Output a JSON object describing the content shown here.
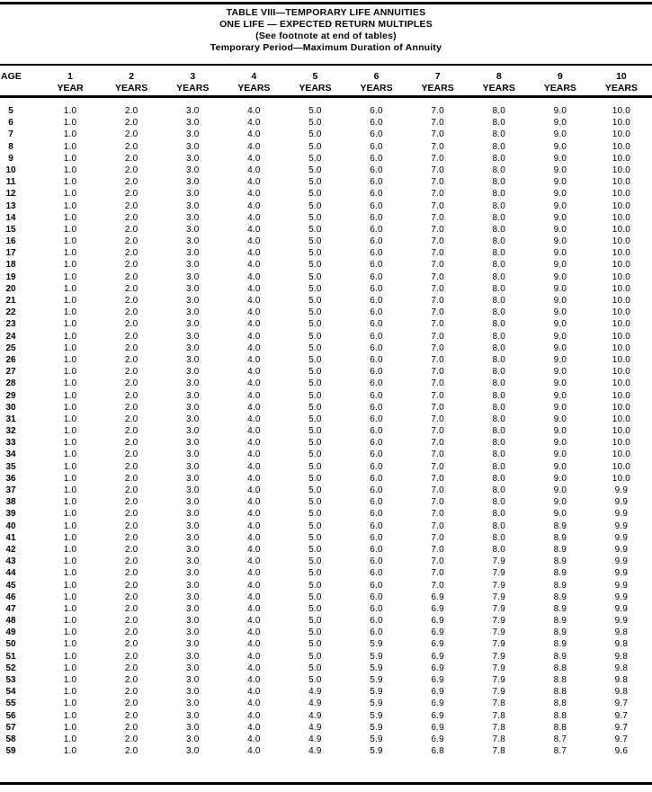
{
  "colors": {
    "background": "#ffffff",
    "text": "#000000",
    "rule": "#000000"
  },
  "title_lines": [
    "TABLE VIII—TEMPORARY LIFE ANNUITIES",
    "ONE LIFE — EXPECTED RETURN MULTIPLES",
    "(See footnote at end of tables)",
    "Temporary Period—Maximum Duration of Annuity"
  ],
  "table": {
    "age_header": "AGE",
    "year_columns": [
      {
        "number": "1",
        "unit": "YEAR"
      },
      {
        "number": "2",
        "unit": "YEARS"
      },
      {
        "number": "3",
        "unit": "YEARS"
      },
      {
        "number": "4",
        "unit": "YEARS"
      },
      {
        "number": "5",
        "unit": "YEARS"
      },
      {
        "number": "6",
        "unit": "YEARS"
      },
      {
        "number": "7",
        "unit": "YEARS"
      },
      {
        "number": "8",
        "unit": "YEARS"
      },
      {
        "number": "9",
        "unit": "YEARS"
      },
      {
        "number": "10",
        "unit": "YEARS"
      }
    ],
    "rows": [
      {
        "age": "5",
        "values": [
          "1.0",
          "2.0",
          "3.0",
          "4.0",
          "5.0",
          "6.0",
          "7.0",
          "8.0",
          "9.0",
          "10.0"
        ]
      },
      {
        "age": "6",
        "values": [
          "1.0",
          "2.0",
          "3.0",
          "4.0",
          "5.0",
          "6.0",
          "7.0",
          "8.0",
          "9.0",
          "10.0"
        ]
      },
      {
        "age": "7",
        "values": [
          "1.0",
          "2.0",
          "3.0",
          "4.0",
          "5.0",
          "6.0",
          "7.0",
          "8.0",
          "9.0",
          "10.0"
        ]
      },
      {
        "age": "8",
        "values": [
          "1.0",
          "2.0",
          "3.0",
          "4.0",
          "5.0",
          "6.0",
          "7.0",
          "8.0",
          "9.0",
          "10.0"
        ]
      },
      {
        "age": "9",
        "values": [
          "1.0",
          "2.0",
          "3.0",
          "4.0",
          "5.0",
          "6.0",
          "7.0",
          "8.0",
          "9.0",
          "10.0"
        ]
      },
      {
        "age": "10",
        "values": [
          "1.0",
          "2.0",
          "3.0",
          "4.0",
          "5.0",
          "6.0",
          "7.0",
          "8.0",
          "9.0",
          "10.0"
        ]
      },
      {
        "age": "11",
        "values": [
          "1.0",
          "2.0",
          "3.0",
          "4.0",
          "5.0",
          "6.0",
          "7.0",
          "8.0",
          "9.0",
          "10.0"
        ]
      },
      {
        "age": "12",
        "values": [
          "1.0",
          "2.0",
          "3.0",
          "4.0",
          "5.0",
          "6.0",
          "7.0",
          "8.0",
          "9.0",
          "10.0"
        ]
      },
      {
        "age": "13",
        "values": [
          "1.0",
          "2.0",
          "3.0",
          "4.0",
          "5.0",
          "6.0",
          "7.0",
          "8.0",
          "9.0",
          "10.0"
        ]
      },
      {
        "age": "14",
        "values": [
          "1.0",
          "2.0",
          "3.0",
          "4.0",
          "5.0",
          "6.0",
          "7.0",
          "8.0",
          "9.0",
          "10.0"
        ]
      },
      {
        "age": "15",
        "values": [
          "1.0",
          "2.0",
          "3.0",
          "4.0",
          "5.0",
          "6.0",
          "7.0",
          "8.0",
          "9.0",
          "10.0"
        ]
      },
      {
        "age": "16",
        "values": [
          "1.0",
          "2.0",
          "3.0",
          "4.0",
          "5.0",
          "6.0",
          "7.0",
          "8.0",
          "9.0",
          "10.0"
        ]
      },
      {
        "age": "17",
        "values": [
          "1.0",
          "2.0",
          "3.0",
          "4.0",
          "5.0",
          "6.0",
          "7.0",
          "8.0",
          "9.0",
          "10.0"
        ]
      },
      {
        "age": "18",
        "values": [
          "1.0",
          "2.0",
          "3.0",
          "4.0",
          "5.0",
          "6.0",
          "7.0",
          "8.0",
          "9.0",
          "10.0"
        ]
      },
      {
        "age": "19",
        "values": [
          "1.0",
          "2.0",
          "3.0",
          "4.0",
          "5.0",
          "6.0",
          "7.0",
          "8.0",
          "9.0",
          "10.0"
        ]
      },
      {
        "age": "20",
        "values": [
          "1.0",
          "2.0",
          "3.0",
          "4.0",
          "5.0",
          "6.0",
          "7.0",
          "8.0",
          "9.0",
          "10.0"
        ]
      },
      {
        "age": "21",
        "values": [
          "1.0",
          "2.0",
          "3.0",
          "4.0",
          "5.0",
          "6.0",
          "7.0",
          "8.0",
          "9.0",
          "10.0"
        ]
      },
      {
        "age": "22",
        "values": [
          "1.0",
          "2.0",
          "3.0",
          "4.0",
          "5.0",
          "6.0",
          "7.0",
          "8.0",
          "9.0",
          "10.0"
        ]
      },
      {
        "age": "23",
        "values": [
          "1.0",
          "2.0",
          "3.0",
          "4.0",
          "5.0",
          "6.0",
          "7.0",
          "8.0",
          "9.0",
          "10.0"
        ]
      },
      {
        "age": "24",
        "values": [
          "1.0",
          "2.0",
          "3.0",
          "4.0",
          "5.0",
          "6.0",
          "7.0",
          "8.0",
          "9.0",
          "10.0"
        ]
      },
      {
        "age": "25",
        "values": [
          "1.0",
          "2.0",
          "3.0",
          "4.0",
          "5.0",
          "6.0",
          "7.0",
          "8.0",
          "9.0",
          "10.0"
        ]
      },
      {
        "age": "26",
        "values": [
          "1.0",
          "2.0",
          "3.0",
          "4.0",
          "5.0",
          "6.0",
          "7.0",
          "8.0",
          "9.0",
          "10.0"
        ]
      },
      {
        "age": "27",
        "values": [
          "1.0",
          "2.0",
          "3.0",
          "4.0",
          "5.0",
          "6.0",
          "7.0",
          "8.0",
          "9.0",
          "10.0"
        ]
      },
      {
        "age": "28",
        "values": [
          "1.0",
          "2.0",
          "3.0",
          "4.0",
          "5.0",
          "6.0",
          "7.0",
          "8.0",
          "9.0",
          "10.0"
        ]
      },
      {
        "age": "29",
        "values": [
          "1.0",
          "2.0",
          "3.0",
          "4.0",
          "5.0",
          "6.0",
          "7.0",
          "8.0",
          "9.0",
          "10.0"
        ]
      },
      {
        "age": "30",
        "values": [
          "1.0",
          "2.0",
          "3.0",
          "4.0",
          "5.0",
          "6.0",
          "7.0",
          "8.0",
          "9.0",
          "10.0"
        ]
      },
      {
        "age": "31",
        "values": [
          "1.0",
          "2.0",
          "3.0",
          "4.0",
          "5.0",
          "6.0",
          "7.0",
          "8.0",
          "9.0",
          "10.0"
        ]
      },
      {
        "age": "32",
        "values": [
          "1.0",
          "2.0",
          "3.0",
          "4.0",
          "5.0",
          "6.0",
          "7.0",
          "8.0",
          "9.0",
          "10.0"
        ]
      },
      {
        "age": "33",
        "values": [
          "1.0",
          "2.0",
          "3.0",
          "4.0",
          "5.0",
          "6.0",
          "7.0",
          "8.0",
          "9.0",
          "10.0"
        ]
      },
      {
        "age": "34",
        "values": [
          "1.0",
          "2.0",
          "3.0",
          "4.0",
          "5.0",
          "6.0",
          "7.0",
          "8.0",
          "9.0",
          "10.0"
        ]
      },
      {
        "age": "35",
        "values": [
          "1.0",
          "2.0",
          "3.0",
          "4.0",
          "5.0",
          "6.0",
          "7.0",
          "8.0",
          "9.0",
          "10.0"
        ]
      },
      {
        "age": "36",
        "values": [
          "1.0",
          "2.0",
          "3.0",
          "4.0",
          "5.0",
          "6.0",
          "7.0",
          "8.0",
          "9.0",
          "10.0"
        ]
      },
      {
        "age": "37",
        "values": [
          "1.0",
          "2.0",
          "3.0",
          "4.0",
          "5.0",
          "6.0",
          "7.0",
          "8.0",
          "9.0",
          "9.9"
        ]
      },
      {
        "age": "38",
        "values": [
          "1.0",
          "2.0",
          "3.0",
          "4.0",
          "5.0",
          "6.0",
          "7.0",
          "8.0",
          "9.0",
          "9.9"
        ]
      },
      {
        "age": "39",
        "values": [
          "1.0",
          "2.0",
          "3.0",
          "4.0",
          "5.0",
          "6.0",
          "7.0",
          "8.0",
          "9.0",
          "9.9"
        ]
      },
      {
        "age": "40",
        "values": [
          "1.0",
          "2.0",
          "3.0",
          "4.0",
          "5.0",
          "6.0",
          "7.0",
          "8.0",
          "8.9",
          "9.9"
        ]
      },
      {
        "age": "41",
        "values": [
          "1.0",
          "2.0",
          "3.0",
          "4.0",
          "5.0",
          "6.0",
          "7.0",
          "8.0",
          "8.9",
          "9.9"
        ]
      },
      {
        "age": "42",
        "values": [
          "1.0",
          "2.0",
          "3.0",
          "4.0",
          "5.0",
          "6.0",
          "7.0",
          "8.0",
          "8.9",
          "9.9"
        ]
      },
      {
        "age": "43",
        "values": [
          "1.0",
          "2.0",
          "3.0",
          "4.0",
          "5.0",
          "6.0",
          "7.0",
          "7.9",
          "8.9",
          "9.9"
        ]
      },
      {
        "age": "44",
        "values": [
          "1.0",
          "2.0",
          "3.0",
          "4.0",
          "5.0",
          "6.0",
          "7.0",
          "7.9",
          "8.9",
          "9.9"
        ]
      },
      {
        "age": "45",
        "values": [
          "1.0",
          "2.0",
          "3.0",
          "4.0",
          "5.0",
          "6.0",
          "7.0",
          "7.9",
          "8.9",
          "9.9"
        ]
      },
      {
        "age": "46",
        "values": [
          "1.0",
          "2.0",
          "3.0",
          "4.0",
          "5.0",
          "6.0",
          "6.9",
          "7.9",
          "8.9",
          "9.9"
        ]
      },
      {
        "age": "47",
        "values": [
          "1.0",
          "2.0",
          "3.0",
          "4.0",
          "5.0",
          "6.0",
          "6.9",
          "7.9",
          "8.9",
          "9.9"
        ]
      },
      {
        "age": "48",
        "values": [
          "1.0",
          "2.0",
          "3.0",
          "4.0",
          "5.0",
          "6.0",
          "6.9",
          "7.9",
          "8.9",
          "9.9"
        ]
      },
      {
        "age": "49",
        "values": [
          "1.0",
          "2.0",
          "3.0",
          "4.0",
          "5.0",
          "6.0",
          "6.9",
          "7.9",
          "8.9",
          "9.8"
        ]
      },
      {
        "age": "50",
        "values": [
          "1.0",
          "2.0",
          "3.0",
          "4.0",
          "5.0",
          "5.9",
          "6.9",
          "7.9",
          "8.9",
          "9.8"
        ]
      },
      {
        "age": "51",
        "values": [
          "1.0",
          "2.0",
          "3.0",
          "4.0",
          "5.0",
          "5.9",
          "6.9",
          "7.9",
          "8.9",
          "9.8"
        ]
      },
      {
        "age": "52",
        "values": [
          "1.0",
          "2.0",
          "3.0",
          "4.0",
          "5.0",
          "5.9",
          "6.9",
          "7.9",
          "8.8",
          "9.8"
        ]
      },
      {
        "age": "53",
        "values": [
          "1.0",
          "2.0",
          "3.0",
          "4.0",
          "5.0",
          "5.9",
          "6.9",
          "7.9",
          "8.8",
          "9.8"
        ]
      },
      {
        "age": "54",
        "values": [
          "1.0",
          "2.0",
          "3.0",
          "4.0",
          "4.9",
          "5.9",
          "6.9",
          "7.9",
          "8.8",
          "9.8"
        ]
      },
      {
        "age": "55",
        "values": [
          "1.0",
          "2.0",
          "3.0",
          "4.0",
          "4.9",
          "5.9",
          "6.9",
          "7.8",
          "8.8",
          "9.7"
        ]
      },
      {
        "age": "56",
        "values": [
          "1.0",
          "2.0",
          "3.0",
          "4.0",
          "4.9",
          "5.9",
          "6.9",
          "7.8",
          "8.8",
          "9.7"
        ]
      },
      {
        "age": "57",
        "values": [
          "1.0",
          "2.0",
          "3.0",
          "4.0",
          "4.9",
          "5.9",
          "6.9",
          "7.8",
          "8.8",
          "9.7"
        ]
      },
      {
        "age": "58",
        "values": [
          "1.0",
          "2.0",
          "3.0",
          "4.0",
          "4.9",
          "5.9",
          "6.9",
          "7.8",
          "8.7",
          "9.7"
        ]
      },
      {
        "age": "59",
        "values": [
          "1.0",
          "2.0",
          "3.0",
          "4.0",
          "4.9",
          "5.9",
          "6.8",
          "7.8",
          "8.7",
          "9.6"
        ]
      }
    ]
  }
}
